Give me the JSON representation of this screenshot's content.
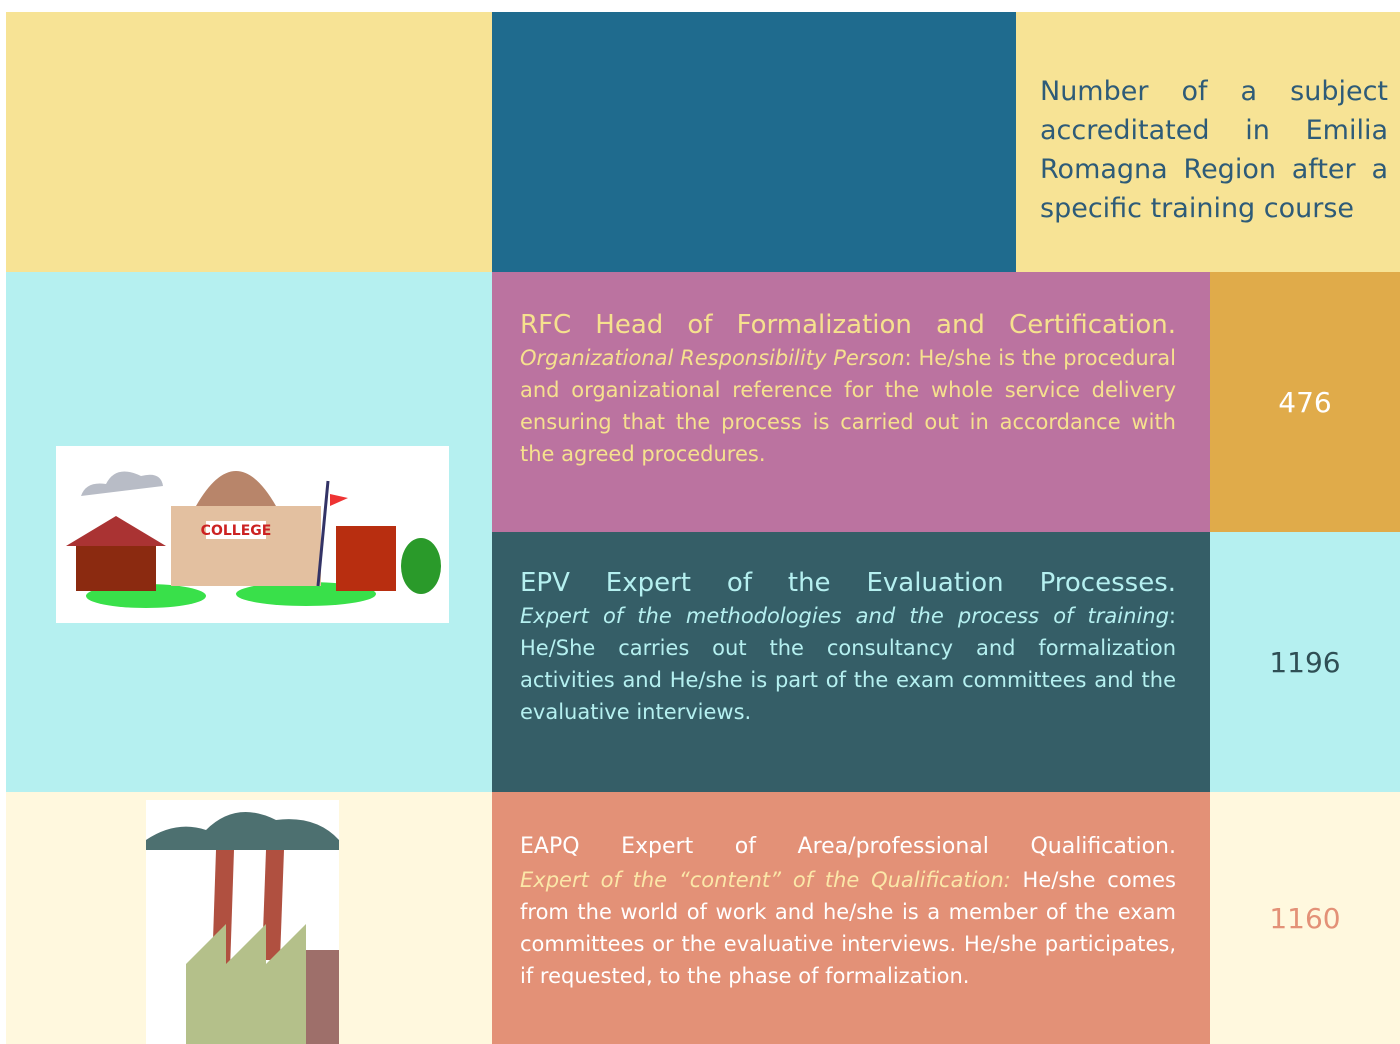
{
  "header": {
    "column_label": "Number of a subject accreditated in Emilia Romagna Region after a specific training course"
  },
  "images": {
    "college_sign": "COLLEGE"
  },
  "rows": [
    {
      "title": "RFC Head of Formalization and Certification.",
      "role": "Organizational Responsibility Person",
      "description": ": He/she is the procedural and organizational reference for the whole service delivery ensuring that the process is carried out in accordance with the agreed procedures.",
      "count": "476"
    },
    {
      "title": "EPV Expert of the Evaluation Processes.",
      "role": "Expert of the methodologies and the process of training",
      "description": ": He/She carries out the consultancy and formalization activities and He/she is part of the exam committees and the evaluative interviews.",
      "count": "1196"
    },
    {
      "title": "EAPQ Expert of Area/professional Qualification.",
      "role": "Expert of the “content” of the Qualification:",
      "description": " He/she comes from the world of work and he/she is a member of the exam committees or the evaluative interviews. He/she participates, if requested, to the phase of formalization.",
      "count": "1160"
    }
  ]
}
